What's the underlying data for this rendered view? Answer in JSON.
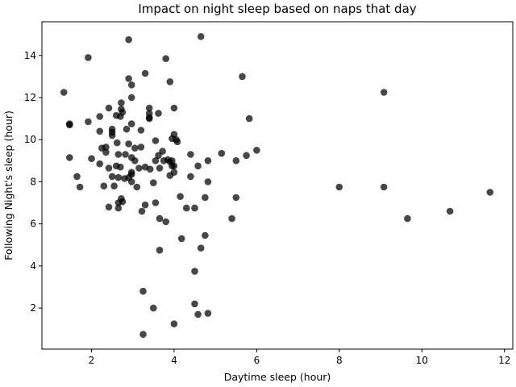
{
  "chart_data": {
    "type": "scatter",
    "title": "Impact on night sleep based on naps that day",
    "xlabel": "Daytime sleep (hour)",
    "ylabel": "Following Night's sleep (hour)",
    "xlim": [
      0.8,
      12.2
    ],
    "ylim": [
      0.05,
      15.6
    ],
    "xticks": [
      2,
      4,
      6,
      8,
      10,
      12
    ],
    "yticks": [
      2,
      4,
      6,
      8,
      10,
      12,
      14
    ],
    "grid": false,
    "legend": "none",
    "marker_color": "#000000",
    "points": [
      [
        1.33,
        12.25
      ],
      [
        1.92,
        13.9
      ],
      [
        1.47,
        10.7
      ],
      [
        1.47,
        10.75
      ],
      [
        1.47,
        9.15
      ],
      [
        1.65,
        8.25
      ],
      [
        1.72,
        7.75
      ],
      [
        1.92,
        10.85
      ],
      [
        2.0,
        9.1
      ],
      [
        2.2,
        11.1
      ],
      [
        2.2,
        10.4
      ],
      [
        2.2,
        8.85
      ],
      [
        2.25,
        9.6
      ],
      [
        2.3,
        7.8
      ],
      [
        2.35,
        9.65
      ],
      [
        2.35,
        9.4
      ],
      [
        2.42,
        11.5
      ],
      [
        2.42,
        8.65
      ],
      [
        2.42,
        6.8
      ],
      [
        2.5,
        10.5
      ],
      [
        2.5,
        10.35
      ],
      [
        2.5,
        10.2
      ],
      [
        2.5,
        8.25
      ],
      [
        2.55,
        7.8
      ],
      [
        2.6,
        11.15
      ],
      [
        2.6,
        8.75
      ],
      [
        2.62,
        9.85
      ],
      [
        2.65,
        9.3
      ],
      [
        2.65,
        8.2
      ],
      [
        2.65,
        7.0
      ],
      [
        2.65,
        6.75
      ],
      [
        2.7,
        11.1
      ],
      [
        2.7,
        8.7
      ],
      [
        2.72,
        11.75
      ],
      [
        2.72,
        11.45
      ],
      [
        2.72,
        7.2
      ],
      [
        2.75,
        11.3
      ],
      [
        2.75,
        7.05
      ],
      [
        2.8,
        8.15
      ],
      [
        2.82,
        9.3
      ],
      [
        2.85,
        10.5
      ],
      [
        2.9,
        14.75
      ],
      [
        2.9,
        12.9
      ],
      [
        2.9,
        9.8
      ],
      [
        2.9,
        8.2
      ],
      [
        2.97,
        12.6
      ],
      [
        2.97,
        12.0
      ],
      [
        2.97,
        10.75
      ],
      [
        2.97,
        9.15
      ],
      [
        2.97,
        8.45
      ],
      [
        2.97,
        8.35
      ],
      [
        2.97,
        8.0
      ],
      [
        3.05,
        9.6
      ],
      [
        3.05,
        9.0
      ],
      [
        3.1,
        7.75
      ],
      [
        3.15,
        8.65
      ],
      [
        3.2,
        10.45
      ],
      [
        3.2,
        9.65
      ],
      [
        3.22,
        6.6
      ],
      [
        3.25,
        2.8
      ],
      [
        3.25,
        0.75
      ],
      [
        3.3,
        13.15
      ],
      [
        3.3,
        8.7
      ],
      [
        3.3,
        6.9
      ],
      [
        3.4,
        11.5
      ],
      [
        3.4,
        11.25
      ],
      [
        3.4,
        11.05
      ],
      [
        3.4,
        11.0
      ],
      [
        3.42,
        8.6
      ],
      [
        3.5,
        7.95
      ],
      [
        3.5,
        2.0
      ],
      [
        3.55,
        9.95
      ],
      [
        3.55,
        9.0
      ],
      [
        3.55,
        7.0
      ],
      [
        3.62,
        11.25
      ],
      [
        3.62,
        9.25
      ],
      [
        3.65,
        8.65
      ],
      [
        3.65,
        6.25
      ],
      [
        3.65,
        4.75
      ],
      [
        3.72,
        9.45
      ],
      [
        3.75,
        9.0
      ],
      [
        3.8,
        13.85
      ],
      [
        3.8,
        6.1
      ],
      [
        3.85,
        9.05
      ],
      [
        3.9,
        12.75
      ],
      [
        3.9,
        8.95
      ],
      [
        3.9,
        8.3
      ],
      [
        3.95,
        10.05
      ],
      [
        3.95,
        9.0
      ],
      [
        3.95,
        8.75
      ],
      [
        4.0,
        11.5
      ],
      [
        4.0,
        10.25
      ],
      [
        4.0,
        8.45
      ],
      [
        4.0,
        8.75
      ],
      [
        4.0,
        1.25
      ],
      [
        4.05,
        10.0
      ],
      [
        4.08,
        9.9
      ],
      [
        4.15,
        7.3
      ],
      [
        4.18,
        5.3
      ],
      [
        4.3,
        6.75
      ],
      [
        4.4,
        9.3
      ],
      [
        4.4,
        8.25
      ],
      [
        4.5,
        6.75
      ],
      [
        4.5,
        3.75
      ],
      [
        4.5,
        2.2
      ],
      [
        4.58,
        8.75
      ],
      [
        4.58,
        1.7
      ],
      [
        4.65,
        14.9
      ],
      [
        4.65,
        4.85
      ],
      [
        4.75,
        7.25
      ],
      [
        4.75,
        5.45
      ],
      [
        4.82,
        9.0
      ],
      [
        4.82,
        8.0
      ],
      [
        4.82,
        1.75
      ],
      [
        5.15,
        9.35
      ],
      [
        5.4,
        6.25
      ],
      [
        5.5,
        9.0
      ],
      [
        5.5,
        7.25
      ],
      [
        5.65,
        13.0
      ],
      [
        5.75,
        9.25
      ],
      [
        5.82,
        11.0
      ],
      [
        6.0,
        9.5
      ],
      [
        8.0,
        7.75
      ],
      [
        9.08,
        12.25
      ],
      [
        9.08,
        7.75
      ],
      [
        9.65,
        6.25
      ],
      [
        10.68,
        6.6
      ],
      [
        11.65,
        7.5
      ]
    ]
  }
}
